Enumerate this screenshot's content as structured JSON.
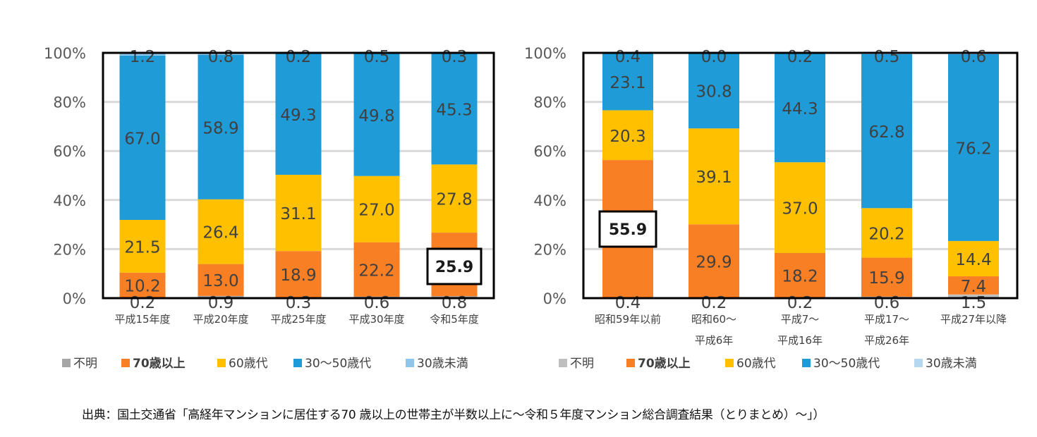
{
  "chart_data": [
    {
      "type": "bar",
      "stacked": true,
      "title": "",
      "xlabel": "",
      "ylabel": "",
      "ylim": [
        0,
        100
      ],
      "yticks": [
        "0%",
        "20%",
        "40%",
        "60%",
        "80%",
        "100%"
      ],
      "grid": true,
      "legend_position": "bottom",
      "categories": [
        [
          "平成15年度"
        ],
        [
          "平成20年度"
        ],
        [
          "平成25年度"
        ],
        [
          "平成30年度"
        ],
        [
          "令和5年度"
        ]
      ],
      "series": [
        {
          "name": "不明",
          "color": "#a6a6a6",
          "values": [
            0.2,
            0.9,
            0.3,
            0.6,
            0.8
          ]
        },
        {
          "name": "70歳以上",
          "color": "#f97f24",
          "bold": true,
          "values": [
            10.2,
            13.0,
            18.9,
            22.2,
            25.9
          ]
        },
        {
          "name": "60歳代",
          "color": "#ffc000",
          "values": [
            21.5,
            26.4,
            31.1,
            27.0,
            27.8
          ]
        },
        {
          "name": "30～50歳代",
          "color": "#1f9bd7",
          "values": [
            67.0,
            58.9,
            49.3,
            49.8,
            45.3
          ]
        },
        {
          "name": "30歳未満",
          "color": "#8dc5eb",
          "values": [
            1.2,
            0.8,
            0.2,
            0.5,
            0.3
          ]
        }
      ],
      "labels": [
        [
          "0.2",
          "10.2",
          "21.5",
          "67.0",
          "1.2"
        ],
        [
          "0.9",
          "13.0",
          "26.4",
          "58.9",
          "0.8"
        ],
        [
          "0.3",
          "18.9",
          "31.1",
          "49.3",
          "0.2"
        ],
        [
          "0.6",
          "22.2",
          "27.0",
          "49.8",
          "0.5"
        ],
        [
          "0.8",
          "25.9",
          "27.8",
          "45.3",
          "0.3"
        ]
      ],
      "highlight": {
        "category_index": 4,
        "series_index": 1,
        "text": "25.9"
      }
    },
    {
      "type": "bar",
      "stacked": true,
      "title": "",
      "xlabel": "",
      "ylabel": "",
      "ylim": [
        0,
        100
      ],
      "yticks": [
        "0%",
        "20%",
        "40%",
        "60%",
        "80%",
        "100%"
      ],
      "grid": true,
      "legend_position": "bottom",
      "categories": [
        [
          "昭和59年以前"
        ],
        [
          "昭和60～",
          "平成6年"
        ],
        [
          "平成7～",
          "平成16年"
        ],
        [
          "平成17～",
          "平成26年"
        ],
        [
          "平成27年以降"
        ]
      ],
      "series": [
        {
          "name": "不明",
          "color": "#bfbfbf",
          "values": [
            0.4,
            0.2,
            0.2,
            0.6,
            1.5
          ]
        },
        {
          "name": "70歳以上",
          "color": "#f97f24",
          "bold": true,
          "values": [
            55.9,
            29.9,
            18.2,
            15.9,
            7.4
          ]
        },
        {
          "name": "60歳代",
          "color": "#ffc000",
          "values": [
            20.3,
            39.1,
            37.0,
            20.2,
            14.4
          ]
        },
        {
          "name": "30～50歳代",
          "color": "#1f9bd7",
          "values": [
            23.1,
            30.8,
            44.3,
            62.8,
            76.2
          ]
        },
        {
          "name": "30歳未満",
          "color": "#b5d7f0",
          "values": [
            0.4,
            0.0,
            0.2,
            0.5,
            0.6
          ]
        }
      ],
      "labels": [
        [
          "0.4",
          "55.9",
          "20.3",
          "23.1",
          "0.4"
        ],
        [
          "0.2",
          "29.9",
          "39.1",
          "30.8",
          "0.0"
        ],
        [
          "0.2",
          "18.2",
          "37.0",
          "44.3",
          "0.2"
        ],
        [
          "0.6",
          "15.9",
          "20.2",
          "62.8",
          "0.5"
        ],
        [
          "1.5",
          "7.4",
          "14.4",
          "76.2",
          "0.6"
        ]
      ],
      "highlight": {
        "category_index": 0,
        "series_index": 1,
        "text": "55.9"
      }
    }
  ],
  "source_text": "出典：国土交通省「高経年マンションに居住する70 歳以上の世帯主が半数以上に～令和５年度マンション総合調査結果（とりまとめ）～」）"
}
